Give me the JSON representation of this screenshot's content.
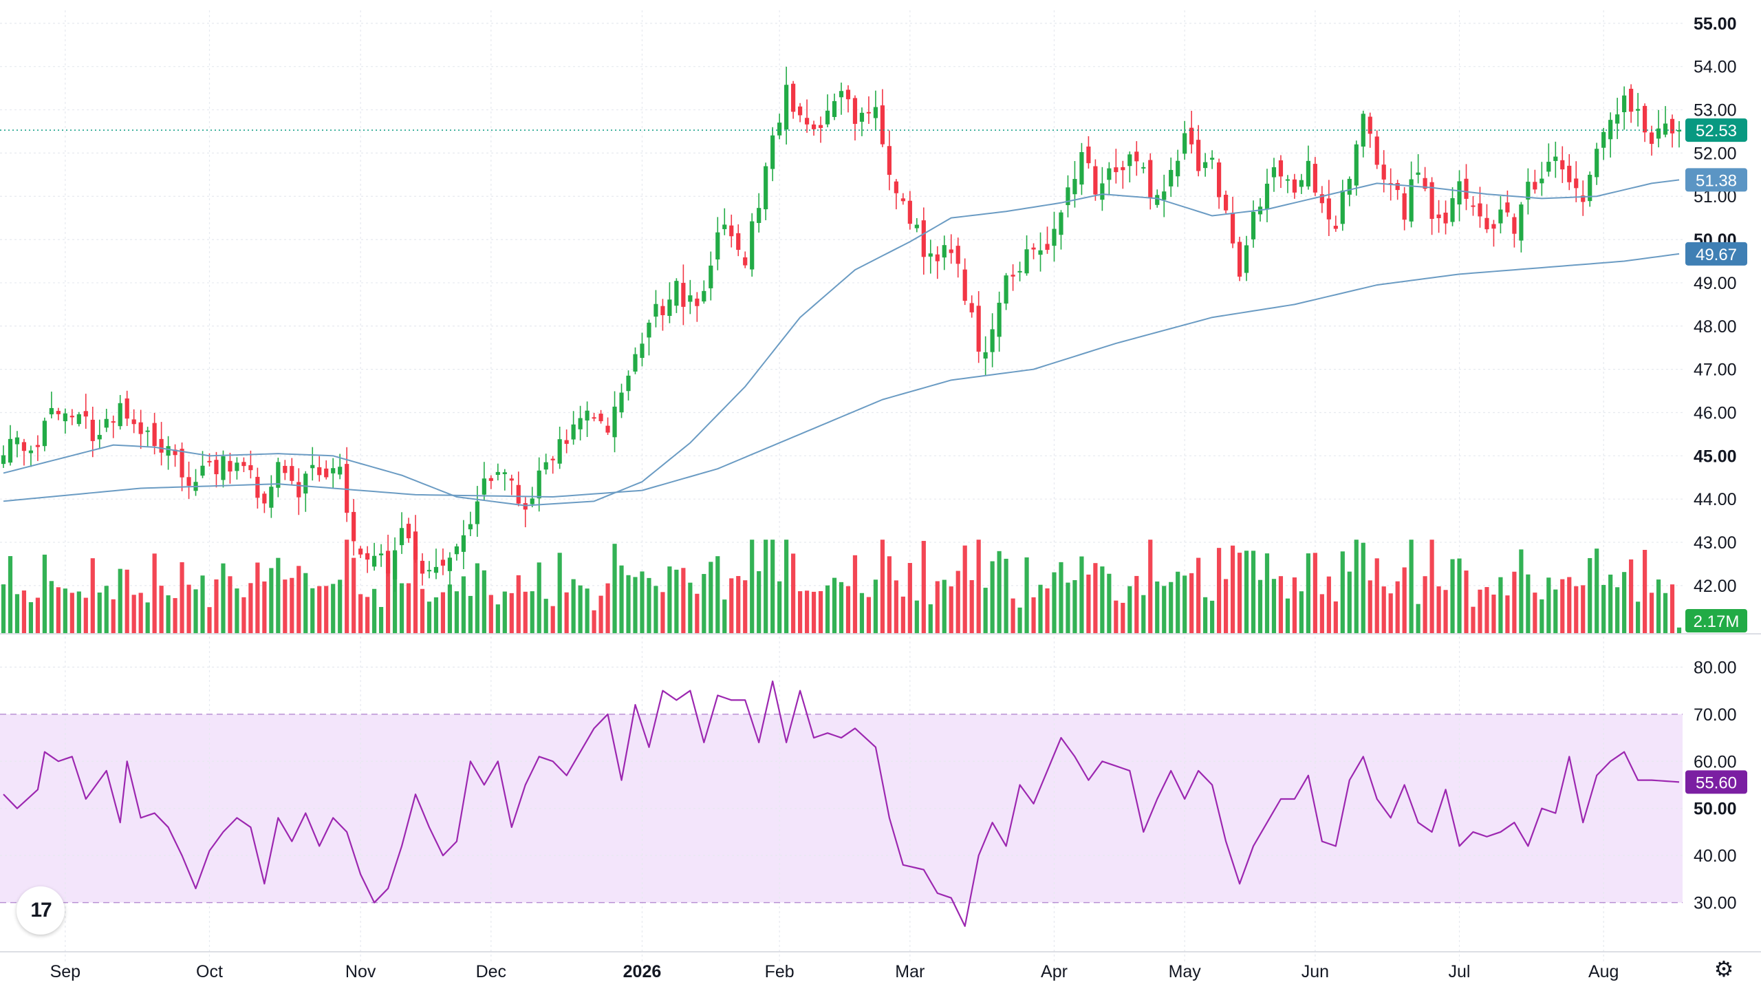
{
  "colors": {
    "up": "#22ab46",
    "down": "#f23645",
    "ma": "#6a9bc3",
    "rsi": "#9c27b0",
    "rsi_band": "#f3e5fb",
    "grid": "#e6e9ef",
    "text": "#131722",
    "last_price": "#089981",
    "ma_fast_tag": "#5b95c4",
    "ma_slow_tag": "#3f7fb4",
    "rsi_tag": "#7b1fa2"
  },
  "icons": {
    "logo": "tradingview-logo-icon",
    "settings": "gear-icon"
  },
  "logo_text": "17",
  "settings_glyph": "⚙",
  "chart_data": {
    "type": "candlestick",
    "x_axis": {
      "labels": [
        "Sep",
        "Oct",
        "Nov",
        "Dec",
        "2026",
        "Feb",
        "Mar",
        "Apr",
        "May",
        "Jun",
        "Jul",
        "Aug"
      ],
      "label_day_index": [
        9,
        30,
        52,
        71,
        93,
        113,
        132,
        153,
        172,
        191,
        212,
        233
      ],
      "bold_labels": [
        "2026"
      ],
      "bar_count": 245
    },
    "price_axis": {
      "ticks": [
        "42.00",
        "43.00",
        "44.00",
        "45.00",
        "46.00",
        "47.00",
        "48.00",
        "49.00",
        "50.00",
        "51.00",
        "52.00",
        "53.00",
        "54.00",
        "55.00"
      ],
      "bold_ticks": [
        "45.00",
        "50.00",
        "55.00"
      ],
      "range": [
        40.9,
        55.3
      ]
    },
    "rsi_axis": {
      "ticks": [
        "30.00",
        "40.00",
        "50.00",
        "60.00",
        "70.00",
        "80.00"
      ],
      "bold_ticks": [
        "50.00"
      ],
      "range": [
        20,
        84
      ],
      "band": [
        30,
        70
      ]
    },
    "anchors": [
      [
        0,
        45.2
      ],
      [
        5,
        45.4
      ],
      [
        7,
        46.0
      ],
      [
        10,
        46.0
      ],
      [
        12,
        45.7
      ],
      [
        14,
        45.4
      ],
      [
        17,
        46.0
      ],
      [
        20,
        45.5
      ],
      [
        24,
        45.1
      ],
      [
        27,
        44.3
      ],
      [
        29,
        44.6
      ],
      [
        33,
        44.8
      ],
      [
        35,
        45.0
      ],
      [
        38,
        43.9
      ],
      [
        40,
        44.7
      ],
      [
        43,
        44.2
      ],
      [
        46,
        44.7
      ],
      [
        49,
        44.6
      ],
      [
        51,
        43.0
      ],
      [
        54,
        42.7
      ],
      [
        56,
        42.3
      ],
      [
        58,
        43.4
      ],
      [
        61,
        42.5
      ],
      [
        63,
        42.3
      ],
      [
        66,
        42.8
      ],
      [
        68,
        43.6
      ],
      [
        70,
        44.3
      ],
      [
        72,
        44.8
      ],
      [
        74,
        44.2
      ],
      [
        76,
        43.6
      ],
      [
        78,
        44.7
      ],
      [
        80,
        45.1
      ],
      [
        83,
        45.5
      ],
      [
        86,
        46.0
      ],
      [
        88,
        45.8
      ],
      [
        90,
        46.5
      ],
      [
        92,
        47.4
      ],
      [
        94,
        48.0
      ],
      [
        96,
        48.5
      ],
      [
        98,
        48.8
      ],
      [
        101,
        48.3
      ],
      [
        103,
        49.5
      ],
      [
        105,
        50.3
      ],
      [
        108,
        49.6
      ],
      [
        110,
        51.0
      ],
      [
        112,
        52.2
      ],
      [
        114,
        53.4
      ],
      [
        116,
        52.9
      ],
      [
        118,
        52.5
      ],
      [
        120,
        52.9
      ],
      [
        122,
        53.3
      ],
      [
        124,
        52.8
      ],
      [
        127,
        53.1
      ],
      [
        129,
        51.5
      ],
      [
        131,
        50.7
      ],
      [
        133,
        50.1
      ],
      [
        135,
        49.5
      ],
      [
        138,
        49.9
      ],
      [
        140,
        48.7
      ],
      [
        142,
        47.4
      ],
      [
        144,
        47.7
      ],
      [
        146,
        48.9
      ],
      [
        148,
        49.1
      ],
      [
        150,
        50.0
      ],
      [
        152,
        49.9
      ],
      [
        155,
        51.3
      ],
      [
        157,
        52.0
      ],
      [
        159,
        51.3
      ],
      [
        161,
        51.8
      ],
      [
        164,
        51.9
      ],
      [
        166,
        51.4
      ],
      [
        168,
        51.0
      ],
      [
        170,
        51.5
      ],
      [
        172,
        52.4
      ],
      [
        174,
        51.8
      ],
      [
        176,
        51.8
      ],
      [
        178,
        50.6
      ],
      [
        180,
        49.3
      ],
      [
        182,
        50.4
      ],
      [
        184,
        51.3
      ],
      [
        186,
        51.5
      ],
      [
        188,
        51.2
      ],
      [
        190,
        51.8
      ],
      [
        192,
        50.8
      ],
      [
        194,
        50.2
      ],
      [
        196,
        51.6
      ],
      [
        198,
        52.7
      ],
      [
        200,
        51.7
      ],
      [
        202,
        51.2
      ],
      [
        204,
        50.7
      ],
      [
        206,
        51.6
      ],
      [
        208,
        50.4
      ],
      [
        210,
        50.6
      ],
      [
        212,
        51.5
      ],
      [
        214,
        50.8
      ],
      [
        216,
        50.3
      ],
      [
        218,
        50.7
      ],
      [
        220,
        50.4
      ],
      [
        222,
        51.2
      ],
      [
        224,
        51.4
      ],
      [
        226,
        52.1
      ],
      [
        228,
        51.5
      ],
      [
        230,
        50.6
      ],
      [
        232,
        52.1
      ],
      [
        234,
        52.5
      ],
      [
        236,
        53.2
      ],
      [
        238,
        52.8
      ],
      [
        240,
        52.3
      ],
      [
        244,
        52.53
      ]
    ],
    "ma_fast": [
      [
        0,
        44.6
      ],
      [
        16,
        45.25
      ],
      [
        22,
        45.2
      ],
      [
        30,
        45.0
      ],
      [
        40,
        45.05
      ],
      [
        48,
        45.0
      ],
      [
        58,
        44.55
      ],
      [
        66,
        44.05
      ],
      [
        76,
        43.85
      ],
      [
        86,
        43.95
      ],
      [
        93,
        44.4
      ],
      [
        100,
        45.3
      ],
      [
        108,
        46.6
      ],
      [
        116,
        48.2
      ],
      [
        124,
        49.3
      ],
      [
        132,
        49.95
      ],
      [
        138,
        50.5
      ],
      [
        146,
        50.65
      ],
      [
        154,
        50.85
      ],
      [
        160,
        51.05
      ],
      [
        168,
        50.95
      ],
      [
        176,
        50.55
      ],
      [
        184,
        50.7
      ],
      [
        192,
        51.0
      ],
      [
        200,
        51.3
      ],
      [
        208,
        51.2
      ],
      [
        216,
        51.05
      ],
      [
        224,
        50.95
      ],
      [
        232,
        51.0
      ],
      [
        240,
        51.3
      ],
      [
        244,
        51.38
      ]
    ],
    "ma_slow": [
      [
        0,
        43.95
      ],
      [
        20,
        44.25
      ],
      [
        40,
        44.35
      ],
      [
        60,
        44.1
      ],
      [
        80,
        44.05
      ],
      [
        93,
        44.2
      ],
      [
        104,
        44.7
      ],
      [
        116,
        45.5
      ],
      [
        128,
        46.3
      ],
      [
        138,
        46.75
      ],
      [
        150,
        47.0
      ],
      [
        162,
        47.6
      ],
      [
        176,
        48.2
      ],
      [
        188,
        48.5
      ],
      [
        200,
        48.95
      ],
      [
        212,
        49.2
      ],
      [
        224,
        49.35
      ],
      [
        236,
        49.5
      ],
      [
        244,
        49.67
      ]
    ],
    "rsi": [
      [
        0,
        53
      ],
      [
        2,
        50
      ],
      [
        5,
        54
      ],
      [
        6,
        62
      ],
      [
        8,
        60
      ],
      [
        10,
        61
      ],
      [
        12,
        52
      ],
      [
        15,
        58
      ],
      [
        17,
        47
      ],
      [
        18,
        60
      ],
      [
        20,
        48
      ],
      [
        22,
        49
      ],
      [
        24,
        46
      ],
      [
        26,
        40
      ],
      [
        28,
        33
      ],
      [
        30,
        41
      ],
      [
        32,
        45
      ],
      [
        34,
        48
      ],
      [
        36,
        46
      ],
      [
        38,
        34
      ],
      [
        40,
        48
      ],
      [
        42,
        43
      ],
      [
        44,
        49
      ],
      [
        46,
        42
      ],
      [
        48,
        48
      ],
      [
        50,
        45
      ],
      [
        52,
        36
      ],
      [
        54,
        30
      ],
      [
        56,
        33
      ],
      [
        58,
        42
      ],
      [
        60,
        53
      ],
      [
        62,
        46
      ],
      [
        64,
        40
      ],
      [
        66,
        43
      ],
      [
        68,
        60
      ],
      [
        70,
        55
      ],
      [
        72,
        60
      ],
      [
        74,
        46
      ],
      [
        76,
        55
      ],
      [
        78,
        61
      ],
      [
        80,
        60
      ],
      [
        82,
        57
      ],
      [
        84,
        62
      ],
      [
        86,
        67
      ],
      [
        88,
        70
      ],
      [
        90,
        56
      ],
      [
        92,
        72
      ],
      [
        94,
        63
      ],
      [
        96,
        75
      ],
      [
        98,
        73
      ],
      [
        100,
        75
      ],
      [
        102,
        64
      ],
      [
        104,
        74
      ],
      [
        106,
        73
      ],
      [
        108,
        73
      ],
      [
        110,
        64
      ],
      [
        112,
        77
      ],
      [
        114,
        64
      ],
      [
        116,
        75
      ],
      [
        118,
        65
      ],
      [
        120,
        66
      ],
      [
        122,
        65
      ],
      [
        124,
        67
      ],
      [
        127,
        63
      ],
      [
        129,
        48
      ],
      [
        131,
        38
      ],
      [
        134,
        37
      ],
      [
        136,
        32
      ],
      [
        138,
        31
      ],
      [
        140,
        25
      ],
      [
        142,
        40
      ],
      [
        144,
        47
      ],
      [
        146,
        42
      ],
      [
        148,
        55
      ],
      [
        150,
        51
      ],
      [
        152,
        58
      ],
      [
        154,
        65
      ],
      [
        156,
        61
      ],
      [
        158,
        56
      ],
      [
        160,
        60
      ],
      [
        162,
        59
      ],
      [
        164,
        58
      ],
      [
        166,
        45
      ],
      [
        168,
        52
      ],
      [
        170,
        58
      ],
      [
        172,
        52
      ],
      [
        174,
        58
      ],
      [
        176,
        55
      ],
      [
        178,
        43
      ],
      [
        180,
        34
      ],
      [
        182,
        42
      ],
      [
        184,
        47
      ],
      [
        186,
        52
      ],
      [
        188,
        52
      ],
      [
        190,
        57
      ],
      [
        192,
        43
      ],
      [
        194,
        42
      ],
      [
        196,
        56
      ],
      [
        198,
        61
      ],
      [
        200,
        52
      ],
      [
        202,
        48
      ],
      [
        204,
        55
      ],
      [
        206,
        47
      ],
      [
        208,
        45
      ],
      [
        210,
        54
      ],
      [
        212,
        42
      ],
      [
        214,
        45
      ],
      [
        216,
        44
      ],
      [
        218,
        45
      ],
      [
        220,
        47
      ],
      [
        222,
        42
      ],
      [
        224,
        50
      ],
      [
        226,
        49
      ],
      [
        228,
        61
      ],
      [
        230,
        47
      ],
      [
        232,
        57
      ],
      [
        234,
        60
      ],
      [
        236,
        62
      ],
      [
        238,
        56
      ],
      [
        240,
        56
      ],
      [
        244,
        55.6
      ]
    ],
    "volume_range": [
      0,
      6.0
    ],
    "last_volume": 0.35,
    "last_volume_label": "2.17M",
    "tags": {
      "last_price": {
        "value": 52.53,
        "label": "52.53"
      },
      "ma_fast": {
        "value": 51.38,
        "label": "51.38"
      },
      "ma_slow": {
        "value": 49.67,
        "label": "49.67"
      },
      "rsi": {
        "value": 55.6,
        "label": "55.60"
      }
    }
  }
}
